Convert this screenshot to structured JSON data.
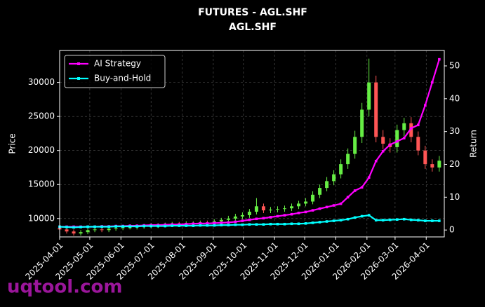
{
  "chart_data": {
    "type": "candlestick",
    "title": "FUTURES - AGL.SHF",
    "subtitle": "AGL.SHF",
    "ylabel": "Price",
    "y2label": "Return",
    "watermark": "uqtool.com",
    "up_color": "#66ee44",
    "down_color": "#ff5555",
    "x": [
      "2025-04-01",
      "2025-04-08",
      "2025-04-15",
      "2025-04-22",
      "2025-04-29",
      "2025-05-06",
      "2025-05-13",
      "2025-05-20",
      "2025-05-27",
      "2025-06-03",
      "2025-06-10",
      "2025-06-17",
      "2025-06-24",
      "2025-07-01",
      "2025-07-08",
      "2025-07-15",
      "2025-07-22",
      "2025-07-29",
      "2025-08-05",
      "2025-08-12",
      "2025-08-19",
      "2025-08-26",
      "2025-09-02",
      "2025-09-09",
      "2025-09-16",
      "2025-09-23",
      "2025-09-30",
      "2025-10-07",
      "2025-10-14",
      "2025-10-21",
      "2025-10-28",
      "2025-11-04",
      "2025-11-11",
      "2025-11-18",
      "2025-11-25",
      "2025-12-02",
      "2025-12-09",
      "2025-12-16",
      "2025-12-23",
      "2025-12-30",
      "2026-01-06",
      "2026-01-13",
      "2026-01-20",
      "2026-01-27",
      "2026-02-03",
      "2026-02-10",
      "2026-02-17",
      "2026-02-24",
      "2026-03-03",
      "2026-03-10",
      "2026-03-17",
      "2026-03-24",
      "2026-03-31",
      "2026-04-07",
      "2026-04-14"
    ],
    "open": [
      8600,
      8400,
      8100,
      7800,
      8000,
      8300,
      8400,
      8300,
      8500,
      8600,
      8700,
      8700,
      8800,
      8900,
      8900,
      9000,
      9100,
      9200,
      9100,
      9300,
      9300,
      9400,
      9300,
      9600,
      9800,
      10000,
      10300,
      10500,
      11000,
      11800,
      11200,
      11300,
      11400,
      11500,
      11800,
      12200,
      12500,
      13500,
      14500,
      15500,
      16500,
      18000,
      19500,
      22000,
      26000,
      30000,
      22000,
      21000,
      20500,
      23000,
      24000,
      22000,
      20000,
      18000,
      17500
    ],
    "high": [
      8900,
      8700,
      8400,
      8300,
      8600,
      8700,
      8700,
      8800,
      8900,
      9000,
      9100,
      9100,
      9200,
      9300,
      9300,
      9400,
      9500,
      9500,
      9600,
      9600,
      9700,
      9700,
      9900,
      10100,
      10400,
      10700,
      10900,
      11400,
      13000,
      12200,
      11700,
      11800,
      11900,
      12200,
      12600,
      13000,
      14000,
      15000,
      16100,
      17100,
      18700,
      20300,
      22900,
      27000,
      33500,
      31000,
      23000,
      21800,
      23800,
      24800,
      24900,
      22800,
      20700,
      18700,
      19200
    ],
    "low": [
      8100,
      7800,
      7500,
      7500,
      7700,
      8000,
      8000,
      8000,
      8200,
      8300,
      8400,
      8400,
      8500,
      8600,
      8600,
      8700,
      8800,
      8800,
      8800,
      8900,
      9000,
      9000,
      9000,
      9300,
      9500,
      9700,
      9900,
      10100,
      10600,
      10800,
      10800,
      10900,
      11000,
      11100,
      11400,
      11800,
      12100,
      13000,
      14000,
      14900,
      15900,
      17300,
      18800,
      21100,
      25000,
      21200,
      20200,
      19700,
      19700,
      22100,
      21200,
      19300,
      17300,
      16900,
      16900
    ],
    "close": [
      8400,
      8100,
      7800,
      8000,
      8300,
      8400,
      8300,
      8500,
      8600,
      8700,
      8700,
      8800,
      8900,
      8900,
      9000,
      9100,
      9200,
      9100,
      9300,
      9300,
      9400,
      9300,
      9600,
      9800,
      10000,
      10300,
      10500,
      11000,
      11800,
      11200,
      11300,
      11400,
      11500,
      11800,
      12200,
      12500,
      13500,
      14500,
      15500,
      16500,
      18000,
      19500,
      22000,
      26000,
      30000,
      22000,
      21000,
      20500,
      23000,
      24000,
      22000,
      20000,
      18000,
      17500,
      18500
    ],
    "series": [
      {
        "name": "AI Strategy",
        "color": "#ff00ff",
        "axis": "y2",
        "values": [
          1,
          1,
          1,
          1,
          1,
          1,
          1.1,
          1.1,
          1.2,
          1.2,
          1.3,
          1.3,
          1.4,
          1.5,
          1.5,
          1.6,
          1.7,
          1.7,
          1.8,
          1.9,
          2,
          2,
          2.1,
          2.2,
          2.3,
          2.5,
          2.8,
          3.1,
          3.4,
          3.6,
          3.9,
          4.2,
          4.5,
          4.8,
          5.2,
          5.5,
          6,
          6.5,
          7,
          7.5,
          8,
          10,
          12,
          13,
          16,
          21,
          24,
          26,
          27,
          28,
          31,
          32,
          38,
          45,
          52
        ]
      },
      {
        "name": "Buy-and-Hold",
        "color": "#00ffff",
        "axis": "y2",
        "values": [
          1,
          0.9,
          0.8,
          0.9,
          1,
          1,
          1,
          1,
          1.1,
          1.1,
          1.1,
          1.1,
          1.2,
          1.2,
          1.2,
          1.2,
          1.3,
          1.3,
          1.3,
          1.3,
          1.4,
          1.4,
          1.4,
          1.5,
          1.5,
          1.6,
          1.6,
          1.7,
          1.7,
          1.7,
          1.8,
          1.8,
          1.8,
          1.9,
          1.9,
          2,
          2.2,
          2.4,
          2.6,
          2.8,
          3,
          3.3,
          3.8,
          4.2,
          4.5,
          3,
          3,
          3.1,
          3.2,
          3.3,
          3.1,
          3,
          2.8,
          2.8,
          2.8
        ]
      }
    ],
    "xlim": [
      "2025-04-01",
      "2026-04-19"
    ],
    "xticks": [
      "2025-04-01",
      "2025-05-01",
      "2025-06-01",
      "2025-07-01",
      "2025-08-01",
      "2025-09-01",
      "2025-10-01",
      "2025-11-01",
      "2025-12-01",
      "2026-01-01",
      "2026-02-01",
      "2026-03-01",
      "2026-04-01"
    ],
    "ylim": [
      7300,
      34700
    ],
    "yticks": [
      10000,
      15000,
      20000,
      25000,
      30000
    ],
    "y2lim": [
      -2.1,
      54.7
    ],
    "y2ticks": [
      0,
      10,
      20,
      30,
      40,
      50
    ],
    "grid": true,
    "legend": "upper left"
  }
}
